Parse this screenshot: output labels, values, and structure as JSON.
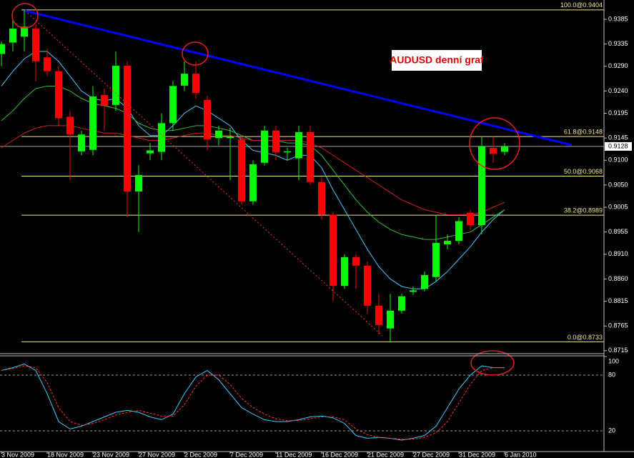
{
  "chart_data": [
    {
      "type": "candlestick",
      "title": "AUDUSD denní graf",
      "open": [
        0.9315,
        0.9338,
        0.935,
        0.9366,
        0.9308,
        0.928,
        0.9188,
        0.9118,
        0.9121,
        0.9232,
        0.9212,
        0.9291,
        0.9037,
        0.9114,
        0.9117,
        0.9175,
        0.9251,
        0.9275,
        0.9222,
        0.9145,
        0.9145,
        0.9142,
        0.9017,
        0.9095,
        0.916,
        0.9116,
        0.9104,
        0.9157,
        0.9056,
        0.899,
        0.8846,
        0.8904,
        0.8887,
        0.8806,
        0.876,
        0.8796,
        0.8834,
        0.884,
        0.8864,
        0.893,
        0.8937,
        0.8994,
        0.8969,
        0.9125,
        0.9117
      ],
      "high": [
        0.934,
        0.9385,
        0.9404,
        0.9375,
        0.9325,
        0.929,
        0.92,
        0.916,
        0.925,
        0.9245,
        0.932,
        0.93,
        0.909,
        0.9135,
        0.9195,
        0.926,
        0.93,
        0.93,
        0.923,
        0.917,
        0.9165,
        0.915,
        0.91,
        0.917,
        0.917,
        0.9125,
        0.917,
        0.917,
        0.9065,
        0.8995,
        0.891,
        0.891,
        0.8895,
        0.883,
        0.883,
        0.883,
        0.8845,
        0.8875,
        0.899,
        0.895,
        0.8985,
        0.9,
        0.9148,
        0.9148,
        0.9135
      ],
      "low": [
        0.929,
        0.932,
        0.932,
        0.926,
        0.927,
        0.917,
        0.906,
        0.911,
        0.911,
        0.916,
        0.92,
        0.8985,
        0.8955,
        0.91,
        0.91,
        0.916,
        0.924,
        0.9225,
        0.912,
        0.913,
        0.906,
        0.901,
        0.901,
        0.909,
        0.91,
        0.91,
        0.906,
        0.905,
        0.898,
        0.8815,
        0.884,
        0.884,
        0.879,
        0.8748,
        0.8733,
        0.879,
        0.8828,
        0.8835,
        0.8855,
        0.892,
        0.893,
        0.896,
        0.895,
        0.9095,
        0.911
      ],
      "close": [
        0.9335,
        0.9366,
        0.937,
        0.93,
        0.928,
        0.9185,
        0.9152,
        0.9152,
        0.9229,
        0.921,
        0.9291,
        0.9037,
        0.907,
        0.912,
        0.9175,
        0.925,
        0.9275,
        0.9236,
        0.9142,
        0.916,
        0.9147,
        0.9017,
        0.9092,
        0.916,
        0.9116,
        0.9118,
        0.9157,
        0.9056,
        0.899,
        0.8846,
        0.8904,
        0.8887,
        0.8806,
        0.8767,
        0.8796,
        0.8825,
        0.8837,
        0.8868,
        0.8933,
        0.8937,
        0.8977,
        0.8969,
        0.9128,
        0.9113,
        0.9128
      ],
      "up_color": "#00ff00",
      "down_color": "#ff0000",
      "ylim": [
        0.8709,
        0.9424
      ],
      "yticks": [
        0.9385,
        0.9335,
        {
          "value": 0.929,
          "label": "0.9290"
        },
        {
          "value": 0.924,
          "label": "0.9240"
        },
        0.9195,
        0.9145,
        {
          "value": 0.91,
          "label": "0.9100"
        },
        {
          "value": 0.905,
          "label": "0.9050"
        },
        0.9005,
        0.8955,
        {
          "value": 0.891,
          "label": "0.8910"
        },
        {
          "value": 0.886,
          "label": "0.8860"
        },
        0.8815,
        0.8765,
        0.8715
      ],
      "overlays": [
        {
          "color": "#40c8ff",
          "values": [
            0.925,
            0.928,
            0.9305,
            0.932,
            0.932,
            0.93,
            0.927,
            0.924,
            0.9225,
            0.922,
            0.9225,
            0.9205,
            0.917,
            0.915,
            0.915,
            0.917,
            0.9195,
            0.921,
            0.92,
            0.9185,
            0.917,
            0.914,
            0.912,
            0.9115,
            0.911,
            0.91,
            0.911,
            0.911,
            0.9085,
            0.904,
            0.9,
            0.896,
            0.892,
            0.8885,
            0.886,
            0.8845,
            0.884,
            0.884,
            0.8855,
            0.8875,
            0.89,
            0.8925,
            0.8955,
            0.898,
            0.9
          ]
        },
        {
          "color": "#30c030",
          "values": [
            0.918,
            0.92,
            0.9225,
            0.9245,
            0.925,
            0.925,
            0.924,
            0.9225,
            0.9215,
            0.921,
            0.9205,
            0.9195,
            0.9175,
            0.9165,
            0.916,
            0.916,
            0.9165,
            0.917,
            0.917,
            0.9165,
            0.916,
            0.915,
            0.914,
            0.914,
            0.914,
            0.9135,
            0.9135,
            0.913,
            0.911,
            0.908,
            0.905,
            0.902,
            0.8995,
            0.8975,
            0.896,
            0.895,
            0.8945,
            0.894,
            0.894,
            0.8945,
            0.895,
            0.8955,
            0.897,
            0.8985,
            0.9
          ]
        },
        {
          "color": "#d02020",
          "values": [
            0.9125,
            0.914,
            0.9155,
            0.9165,
            0.917,
            0.917,
            0.917,
            0.9165,
            0.916,
            0.9155,
            0.9155,
            0.915,
            0.9145,
            0.914,
            0.914,
            0.9145,
            0.915,
            0.9155,
            0.9155,
            0.915,
            0.915,
            0.9145,
            0.914,
            0.914,
            0.914,
            0.914,
            0.914,
            0.9135,
            0.9125,
            0.911,
            0.9095,
            0.908,
            0.9065,
            0.905,
            0.9035,
            0.902,
            0.901,
            0.9,
            0.8995,
            0.899,
            0.899,
            0.899,
            0.8995,
            0.9005,
            0.9015
          ]
        }
      ],
      "levels": [
        {
          "value": 0.9404,
          "label": "100.0@0.9404"
        },
        {
          "value": 0.9148,
          "label": "61.8@0.9148"
        },
        {
          "value": 0.9068,
          "label": "50.0@0.9068"
        },
        {
          "value": 0.8989,
          "label": "38.2@0.8989"
        },
        {
          "value": 0.8733,
          "label": "0.0@0.8733"
        }
      ],
      "level_color": "#f0e68c",
      "last_price": 0.9128
    },
    {
      "type": "line",
      "categories": [
        "3 Nov 2009",
        null,
        null,
        null,
        "18 Nov 2009",
        null,
        null,
        null,
        "23 Nov 2009",
        null,
        null,
        null,
        "27 Nov 2009",
        null,
        null,
        null,
        "2 Dec 2009",
        null,
        null,
        null,
        "7 Dec 2009",
        null,
        null,
        null,
        "11 Dec 2009",
        null,
        null,
        null,
        "16 Dec 2009",
        null,
        null,
        null,
        "21 Dec 2009",
        null,
        null,
        null,
        "27 Dec 2009",
        null,
        null,
        null,
        "31 Dec 2009",
        null,
        null,
        null,
        "6 Jan 2010"
      ],
      "ylim": [
        0,
        100
      ],
      "yticks": [
        100,
        80,
        20
      ],
      "series": [
        {
          "color": "#40c8ff",
          "dashed": false,
          "values": [
            85,
            88,
            92,
            85,
            60,
            30,
            22,
            25,
            30,
            35,
            40,
            42,
            40,
            35,
            32,
            38,
            60,
            78,
            85,
            75,
            60,
            45,
            38,
            32,
            30,
            30,
            32,
            35,
            36,
            34,
            28,
            15,
            12,
            13,
            12,
            10,
            12,
            15,
            25,
            45,
            65,
            80,
            90,
            88,
            88
          ]
        },
        {
          "color": "#ff3030",
          "dashed": true,
          "values": [
            85,
            87,
            90,
            88,
            72,
            45,
            30,
            26,
            28,
            32,
            37,
            40,
            42,
            39,
            36,
            36,
            48,
            68,
            80,
            80,
            70,
            55,
            45,
            38,
            33,
            31,
            31,
            33,
            35,
            35,
            32,
            22,
            16,
            13,
            12,
            11,
            11,
            13,
            18,
            30,
            50,
            70,
            85,
            88,
            88
          ]
        }
      ]
    }
  ]
}
